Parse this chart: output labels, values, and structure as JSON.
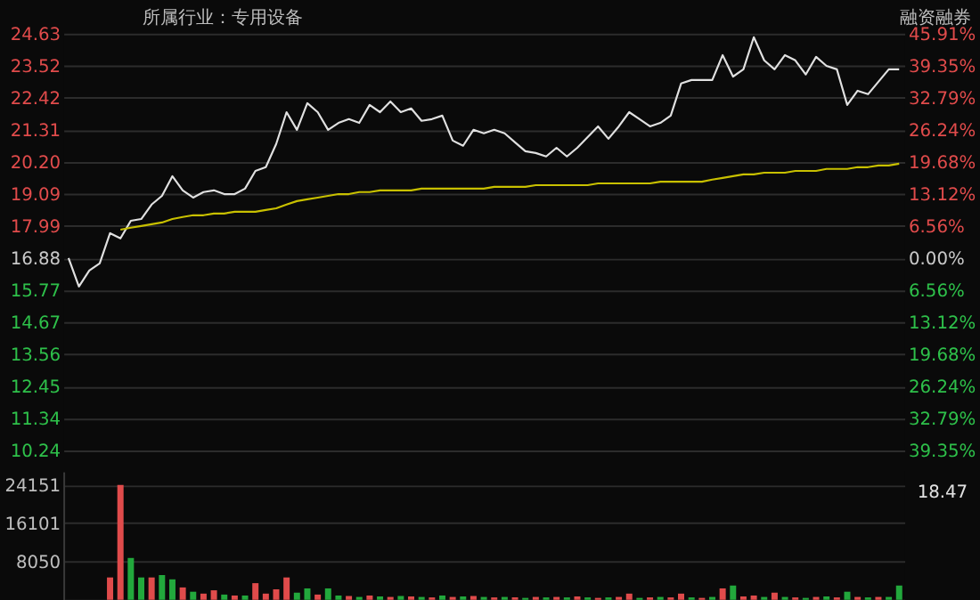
{
  "chart_data": [
    {
      "type": "line",
      "title": "所属行业：专用设备",
      "categories": [
        null,
        null,
        null,
        null,
        null,
        null,
        null,
        null,
        null,
        null,
        null,
        null,
        null,
        null,
        null,
        null,
        null,
        null,
        null,
        null,
        null,
        null,
        null,
        null,
        null,
        null,
        null,
        null,
        null,
        null,
        null,
        null,
        null,
        null,
        null,
        null,
        null,
        null,
        null,
        null,
        null,
        null,
        null,
        null,
        null,
        null,
        null,
        null,
        null,
        null,
        null,
        null,
        null,
        null,
        null,
        null,
        null,
        null,
        null,
        null,
        null,
        null,
        null,
        null,
        null,
        null,
        null,
        null,
        null,
        null,
        null,
        null,
        null,
        null,
        null,
        null,
        null,
        null,
        null,
        null,
        null
      ],
      "series": [
        {
          "color": "#e0e0e0",
          "values": [
            16.88,
            15.9,
            16.45,
            16.7,
            17.74,
            17.56,
            18.17,
            18.23,
            18.73,
            19.03,
            19.71,
            19.22,
            18.97,
            19.16,
            19.22,
            19.09,
            19.09,
            19.28,
            19.89,
            20.02,
            20.82,
            21.92,
            21.31,
            22.23,
            21.92,
            21.31,
            21.55,
            21.68,
            21.55,
            22.17,
            21.92,
            22.29,
            21.92,
            22.05,
            21.62,
            21.68,
            21.8,
            20.94,
            20.76,
            21.31,
            21.19,
            21.31,
            21.19,
            20.88,
            20.57,
            20.51,
            20.39,
            20.69,
            20.39,
            20.69,
            21.06,
            21.43,
            21.0,
            21.43,
            21.92,
            21.68,
            21.43,
            21.55,
            21.8,
            22.91,
            23.03,
            23.03,
            23.03,
            23.89,
            23.15,
            23.4,
            24.51,
            23.71,
            23.4,
            23.89,
            23.71,
            23.22,
            23.83,
            23.52,
            23.4,
            22.17,
            22.66,
            22.54,
            22.97,
            23.4,
            23.4
          ]
        },
        {
          "color": "#c8c000",
          "values": [
            null,
            null,
            null,
            null,
            null,
            17.86,
            17.93,
            17.99,
            18.05,
            18.11,
            18.23,
            18.3,
            18.36,
            18.36,
            18.42,
            18.42,
            18.48,
            18.48,
            18.48,
            18.54,
            18.6,
            18.73,
            18.85,
            18.91,
            18.97,
            19.03,
            19.09,
            19.09,
            19.16,
            19.16,
            19.22,
            19.22,
            19.22,
            19.22,
            19.28,
            19.28,
            19.28,
            19.28,
            19.28,
            19.28,
            19.28,
            19.34,
            19.34,
            19.34,
            19.34,
            19.4,
            19.4,
            19.4,
            19.4,
            19.4,
            19.4,
            19.46,
            19.46,
            19.46,
            19.46,
            19.46,
            19.46,
            19.52,
            19.52,
            19.52,
            19.52,
            19.52,
            19.59,
            19.65,
            19.71,
            19.77,
            19.77,
            19.83,
            19.83,
            19.83,
            19.89,
            19.89,
            19.89,
            19.96,
            19.96,
            19.96,
            20.02,
            20.02,
            20.08,
            20.08,
            20.14
          ]
        }
      ],
      "ylim": [
        10.24,
        24.63
      ],
      "yticks": [
        10.24,
        11.34,
        12.45,
        13.56,
        14.67,
        15.77,
        16.88,
        17.99,
        19.09,
        {
          "value": 20.2,
          "label": "20.20"
        },
        21.31,
        22.42,
        23.52,
        24.63
      ],
      "y2lim": [
        -39.35,
        45.91
      ],
      "y2ticks": [
        {
          "value": -39.35,
          "label": "39.35%"
        },
        {
          "value": -32.79,
          "label": "32.79%"
        },
        {
          "value": -26.24,
          "label": "26.24%"
        },
        {
          "value": -19.68,
          "label": "19.68%"
        },
        {
          "value": -13.12,
          "label": "13.12%"
        },
        {
          "value": -6.56,
          "label": "6.56%"
        },
        {
          "value": 0,
          "label": "0.00%"
        },
        {
          "value": 6.56,
          "label": "6.56%"
        },
        {
          "value": 13.12,
          "label": "13.12%"
        },
        {
          "value": 19.68,
          "label": "19.68%"
        },
        {
          "value": 26.24,
          "label": "26.24%"
        },
        {
          "value": 32.79,
          "label": "32.79%"
        },
        {
          "value": 39.35,
          "label": "39.35%"
        },
        {
          "value": 45.91,
          "label": "45.91%"
        }
      ],
      "grid": "y",
      "annotations": [
        "融资融券",
        "18.47"
      ]
    },
    {
      "type": "bar",
      "categories": [
        null,
        null,
        null,
        null,
        null,
        null,
        null,
        null,
        null,
        null,
        null,
        null,
        null,
        null,
        null,
        null,
        null,
        null,
        null,
        null,
        null,
        null,
        null,
        null,
        null,
        null,
        null,
        null,
        null,
        null,
        null,
        null,
        null,
        null,
        null,
        null,
        null,
        null,
        null,
        null,
        null,
        null,
        null,
        null,
        null,
        null,
        null,
        null,
        null,
        null,
        null,
        null,
        null,
        null,
        null,
        null,
        null,
        null,
        null,
        null,
        null,
        null,
        null,
        null,
        null,
        null,
        null,
        null,
        null,
        null,
        null,
        null,
        null,
        null,
        null,
        null,
        null,
        null,
        null,
        null,
        null
      ],
      "values": [
        null,
        null,
        null,
        null,
        4700,
        24151,
        8800,
        4700,
        4700,
        5200,
        4300,
        2600,
        1700,
        1300,
        2000,
        1100,
        900,
        900,
        3500,
        1300,
        2200,
        4700,
        1500,
        2400,
        1100,
        2400,
        900,
        800,
        600,
        900,
        700,
        600,
        800,
        700,
        600,
        500,
        900,
        600,
        700,
        800,
        600,
        500,
        600,
        500,
        400,
        600,
        500,
        600,
        500,
        700,
        500,
        400,
        500,
        600,
        1300,
        400,
        500,
        600,
        500,
        1300,
        500,
        400,
        600,
        2400,
        3000,
        700,
        900,
        600,
        1500,
        600,
        500,
        400,
        600,
        700,
        500,
        1700,
        600,
        500,
        600,
        600,
        3000
      ],
      "colors": [
        "#e04b4b",
        "#e04b4b",
        "#e04b4b",
        "#e04b4b",
        "#e04b4b",
        "#e04b4b",
        "#22a83c",
        "#22a83c",
        "#e04b4b",
        "#22a83c",
        "#22a83c",
        "#e04b4b",
        "#22a83c",
        "#e04b4b",
        "#e04b4b",
        "#22a83c",
        "#e04b4b",
        "#22a83c",
        "#e04b4b",
        "#e04b4b",
        "#e04b4b",
        "#e04b4b",
        "#22a83c",
        "#22a83c",
        "#e04b4b",
        "#22a83c",
        "#22a83c",
        "#e04b4b",
        "#22a83c",
        "#e04b4b",
        "#22a83c",
        "#e04b4b",
        "#22a83c",
        "#e04b4b",
        "#22a83c",
        "#e04b4b",
        "#22a83c",
        "#e04b4b",
        "#22a83c",
        "#e04b4b",
        "#22a83c",
        "#e04b4b",
        "#22a83c",
        "#e04b4b",
        "#22a83c",
        "#e04b4b",
        "#22a83c",
        "#e04b4b",
        "#22a83c",
        "#e04b4b",
        "#22a83c",
        "#e04b4b",
        "#22a83c",
        "#e04b4b",
        "#e04b4b",
        "#22a83c",
        "#e04b4b",
        "#22a83c",
        "#e04b4b",
        "#e04b4b",
        "#22a83c",
        "#e04b4b",
        "#22a83c",
        "#e04b4b",
        "#22a83c",
        "#e04b4b",
        "#e04b4b",
        "#22a83c",
        "#e04b4b",
        "#22a83c",
        "#e04b4b",
        "#22a83c",
        "#e04b4b",
        "#22a83c",
        "#e04b4b",
        "#22a83c",
        "#e04b4b",
        "#22a83c",
        "#e04b4b",
        "#22a83c",
        "#22a83c"
      ],
      "ylim": [
        0,
        27000
      ],
      "yticks": [
        8050,
        16101,
        24151
      ],
      "grid": "y"
    }
  ]
}
